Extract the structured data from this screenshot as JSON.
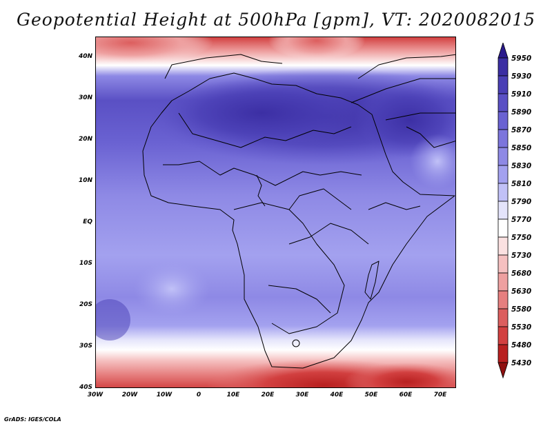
{
  "title": "Geopotential Height at 500hPa [gpm], VT: 2020082015",
  "map": {
    "variable": "Geopotential Height at 500hPa",
    "units": "gpm",
    "valid_time": "2020082015",
    "lat_labels": [
      "40N",
      "30N",
      "20N",
      "10N",
      "EQ",
      "10S",
      "20S",
      "30S",
      "40S"
    ],
    "lon_labels": [
      "30W",
      "20W",
      "10W",
      "0",
      "10E",
      "20E",
      "30E",
      "40E",
      "50E",
      "60E",
      "70E"
    ],
    "lat_range": [
      -40,
      45
    ],
    "lon_range": [
      -30,
      75
    ]
  },
  "colorbar": {
    "labels": [
      "5950",
      "5930",
      "5910",
      "5890",
      "5870",
      "5850",
      "5830",
      "5810",
      "5790",
      "5770",
      "5750",
      "5730",
      "5680",
      "5630",
      "5580",
      "5530",
      "5480",
      "5430"
    ],
    "colors": [
      "#2a1a8c",
      "#3b2ea3",
      "#4a3fb5",
      "#5a50c4",
      "#6a62d2",
      "#7c75dc",
      "#8e89e5",
      "#a3a1ef",
      "#c1c1f7",
      "#e4e4fb",
      "#ffffff",
      "#fbe1e1",
      "#f5c0c0",
      "#eea0a0",
      "#e67f7f",
      "#dc5e5e",
      "#d24040",
      "#b82020",
      "#8f1010"
    ]
  },
  "credit": "GrADS: IGES/COLA"
}
